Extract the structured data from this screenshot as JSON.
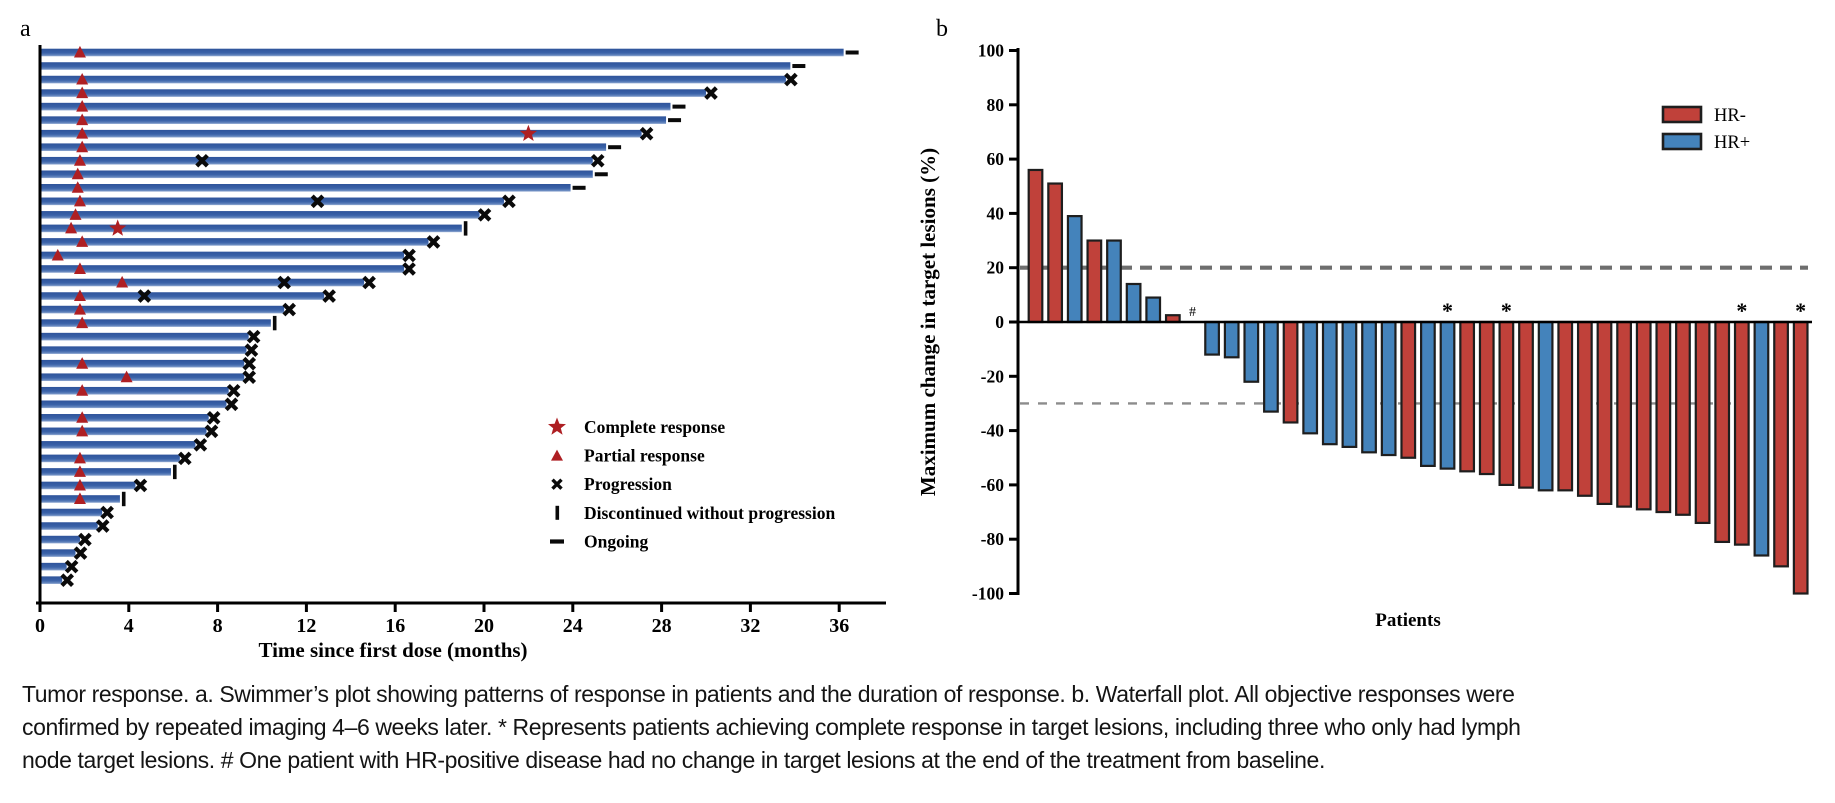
{
  "figure": {
    "caption_lines": [
      "Tumor response. a. Swimmer’s plot showing patterns of response in patients and the duration of response. b. Waterfall plot. All objective responses were",
      "confirmed by repeated imaging 4–6 weeks later. * Represents patients achieving complete response in target lesions, including three who only had lymph",
      "node target lesions. # One patient with HR-positive disease had no change in target lesions at the end of the treatment from baseline."
    ]
  },
  "chart_data": [
    {
      "type": "bar",
      "subtype": "swimmer",
      "panel_label": "a",
      "xlabel": "Time since first dose (months)",
      "x_ticks": [
        0,
        4,
        8,
        12,
        16,
        20,
        24,
        28,
        32,
        36
      ],
      "xlim": [
        0,
        38
      ],
      "grid": false,
      "bar_color": "#3A62A8",
      "marker_red": "#AE1F23",
      "marker_black": "#0a0a0a",
      "legend_position": "center-right",
      "legend": [
        {
          "symbol": "star",
          "label": "Complete response"
        },
        {
          "symbol": "triangle",
          "label": "Partial response"
        },
        {
          "symbol": "x",
          "label": "Progression"
        },
        {
          "symbol": "vbar",
          "label": "Discontinued without progression"
        },
        {
          "symbol": "dash",
          "label": "Ongoing"
        }
      ],
      "patients": [
        {
          "duration": 36.2,
          "pr": 1.8,
          "cr": null,
          "progression_x": [],
          "end": "ongoing"
        },
        {
          "duration": 33.8,
          "pr": null,
          "cr": null,
          "progression_x": [],
          "end": "ongoing"
        },
        {
          "duration": 33.6,
          "pr": 1.9,
          "cr": null,
          "progression_x": [],
          "end": "x"
        },
        {
          "duration": 30.0,
          "pr": 1.9,
          "cr": null,
          "progression_x": [],
          "end": "x"
        },
        {
          "duration": 28.4,
          "pr": 1.9,
          "cr": null,
          "progression_x": [],
          "end": "ongoing"
        },
        {
          "duration": 28.2,
          "pr": 1.9,
          "cr": null,
          "progression_x": [],
          "end": "ongoing"
        },
        {
          "duration": 27.1,
          "pr": 1.9,
          "cr": 22.0,
          "progression_x": [],
          "end": "x"
        },
        {
          "duration": 25.5,
          "pr": 1.9,
          "cr": null,
          "progression_x": [],
          "end": "ongoing"
        },
        {
          "duration": 24.9,
          "pr": 1.8,
          "cr": null,
          "progression_x": [
            7.3
          ],
          "end": "x"
        },
        {
          "duration": 24.9,
          "pr": 1.7,
          "cr": null,
          "progression_x": [],
          "end": "ongoing"
        },
        {
          "duration": 23.9,
          "pr": 1.7,
          "cr": null,
          "progression_x": [],
          "end": "ongoing"
        },
        {
          "duration": 20.9,
          "pr": 1.8,
          "cr": null,
          "progression_x": [
            12.5
          ],
          "end": "x"
        },
        {
          "duration": 19.8,
          "pr": 1.6,
          "cr": null,
          "progression_x": [],
          "end": "x"
        },
        {
          "duration": 19.0,
          "pr": 1.4,
          "cr": 3.5,
          "progression_x": [],
          "end": "disc"
        },
        {
          "duration": 17.5,
          "pr": 1.9,
          "cr": null,
          "progression_x": [],
          "end": "x"
        },
        {
          "duration": 16.4,
          "pr": 0.8,
          "cr": null,
          "progression_x": [],
          "end": "x"
        },
        {
          "duration": 16.4,
          "pr": 1.8,
          "cr": null,
          "progression_x": [],
          "end": "x"
        },
        {
          "duration": 14.6,
          "pr": 3.7,
          "cr": null,
          "progression_x": [
            11.0
          ],
          "end": "x"
        },
        {
          "duration": 12.8,
          "pr": 1.8,
          "cr": null,
          "progression_x": [
            4.7
          ],
          "end": "x"
        },
        {
          "duration": 11.0,
          "pr": 1.8,
          "cr": null,
          "progression_x": [],
          "end": "x"
        },
        {
          "duration": 10.4,
          "pr": 1.9,
          "cr": null,
          "progression_x": [],
          "end": "disc"
        },
        {
          "duration": 9.4,
          "pr": null,
          "cr": null,
          "progression_x": [],
          "end": "x"
        },
        {
          "duration": 9.3,
          "pr": null,
          "cr": null,
          "progression_x": [],
          "end": "x"
        },
        {
          "duration": 9.2,
          "pr": 1.9,
          "cr": null,
          "progression_x": [],
          "end": "x"
        },
        {
          "duration": 9.2,
          "pr": 3.9,
          "cr": null,
          "progression_x": [],
          "end": "x"
        },
        {
          "duration": 8.5,
          "pr": 1.9,
          "cr": null,
          "progression_x": [],
          "end": "x"
        },
        {
          "duration": 8.4,
          "pr": null,
          "cr": null,
          "progression_x": [],
          "end": "x"
        },
        {
          "duration": 7.6,
          "pr": 1.9,
          "cr": null,
          "progression_x": [],
          "end": "x"
        },
        {
          "duration": 7.5,
          "pr": 1.9,
          "cr": null,
          "progression_x": [],
          "end": "x"
        },
        {
          "duration": 7.0,
          "pr": null,
          "cr": null,
          "progression_x": [],
          "end": "x"
        },
        {
          "duration": 6.3,
          "pr": 1.8,
          "cr": null,
          "progression_x": [],
          "end": "x"
        },
        {
          "duration": 5.9,
          "pr": 1.8,
          "cr": null,
          "progression_x": [],
          "end": "disc"
        },
        {
          "duration": 4.3,
          "pr": 1.8,
          "cr": null,
          "progression_x": [],
          "end": "x"
        },
        {
          "duration": 3.6,
          "pr": 1.8,
          "cr": null,
          "progression_x": [],
          "end": "disc"
        },
        {
          "duration": 2.8,
          "pr": null,
          "cr": null,
          "progression_x": [],
          "end": "x"
        },
        {
          "duration": 2.6,
          "pr": null,
          "cr": null,
          "progression_x": [],
          "end": "x"
        },
        {
          "duration": 1.8,
          "pr": null,
          "cr": null,
          "progression_x": [],
          "end": "x"
        },
        {
          "duration": 1.6,
          "pr": null,
          "cr": null,
          "progression_x": [],
          "end": "x"
        },
        {
          "duration": 1.2,
          "pr": null,
          "cr": null,
          "progression_x": [],
          "end": "x"
        },
        {
          "duration": 1.0,
          "pr": null,
          "cr": null,
          "progression_x": [],
          "end": "x"
        }
      ]
    },
    {
      "type": "bar",
      "subtype": "waterfall",
      "panel_label": "b",
      "ylabel": "Maximum change in target lesions (%)",
      "xlabel": "Patients",
      "ylim": [
        -100,
        100
      ],
      "y_ticks": [
        100,
        80,
        60,
        40,
        20,
        0,
        -20,
        -40,
        -60,
        -80,
        -100
      ],
      "reference_lines": [
        20,
        -30
      ],
      "grid": false,
      "legend_position": "top-right",
      "legend": [
        {
          "label": "HR-",
          "color": "#C0413A"
        },
        {
          "label": "HR+",
          "color": "#4483BB"
        }
      ],
      "colors": {
        "HR-": "#C0413A",
        "HR+": "#4483BB"
      },
      "bars": [
        {
          "value": 56,
          "group": "HR-",
          "annotation": null
        },
        {
          "value": 51,
          "group": "HR-",
          "annotation": null
        },
        {
          "value": 39,
          "group": "HR+",
          "annotation": null
        },
        {
          "value": 30,
          "group": "HR-",
          "annotation": null
        },
        {
          "value": 30,
          "group": "HR+",
          "annotation": null
        },
        {
          "value": 14,
          "group": "HR+",
          "annotation": null
        },
        {
          "value": 9,
          "group": "HR+",
          "annotation": null
        },
        {
          "value": 2.5,
          "group": "HR-",
          "annotation": null
        },
        {
          "value": 0,
          "group": "HR+",
          "annotation": "#"
        },
        {
          "value": -12,
          "group": "HR+",
          "annotation": null
        },
        {
          "value": -13,
          "group": "HR+",
          "annotation": null
        },
        {
          "value": -22,
          "group": "HR+",
          "annotation": null
        },
        {
          "value": -33,
          "group": "HR+",
          "annotation": null
        },
        {
          "value": -37,
          "group": "HR-",
          "annotation": null
        },
        {
          "value": -41,
          "group": "HR+",
          "annotation": null
        },
        {
          "value": -45,
          "group": "HR+",
          "annotation": null
        },
        {
          "value": -46,
          "group": "HR+",
          "annotation": null
        },
        {
          "value": -48,
          "group": "HR+",
          "annotation": null
        },
        {
          "value": -49,
          "group": "HR+",
          "annotation": null
        },
        {
          "value": -50,
          "group": "HR-",
          "annotation": null
        },
        {
          "value": -53,
          "group": "HR+",
          "annotation": null
        },
        {
          "value": -54,
          "group": "HR+",
          "annotation": "*"
        },
        {
          "value": -55,
          "group": "HR-",
          "annotation": null
        },
        {
          "value": -56,
          "group": "HR-",
          "annotation": null
        },
        {
          "value": -60,
          "group": "HR-",
          "annotation": "*"
        },
        {
          "value": -61,
          "group": "HR-",
          "annotation": null
        },
        {
          "value": -62,
          "group": "HR+",
          "annotation": null
        },
        {
          "value": -62,
          "group": "HR-",
          "annotation": null
        },
        {
          "value": -64,
          "group": "HR-",
          "annotation": null
        },
        {
          "value": -67,
          "group": "HR-",
          "annotation": null
        },
        {
          "value": -68,
          "group": "HR-",
          "annotation": null
        },
        {
          "value": -69,
          "group": "HR-",
          "annotation": null
        },
        {
          "value": -70,
          "group": "HR-",
          "annotation": null
        },
        {
          "value": -71,
          "group": "HR-",
          "annotation": null
        },
        {
          "value": -74,
          "group": "HR-",
          "annotation": null
        },
        {
          "value": -81,
          "group": "HR-",
          "annotation": null
        },
        {
          "value": -82,
          "group": "HR-",
          "annotation": "*"
        },
        {
          "value": -86,
          "group": "HR+",
          "annotation": null
        },
        {
          "value": -90,
          "group": "HR-",
          "annotation": null
        },
        {
          "value": -100,
          "group": "HR-",
          "annotation": "*"
        }
      ]
    }
  ]
}
